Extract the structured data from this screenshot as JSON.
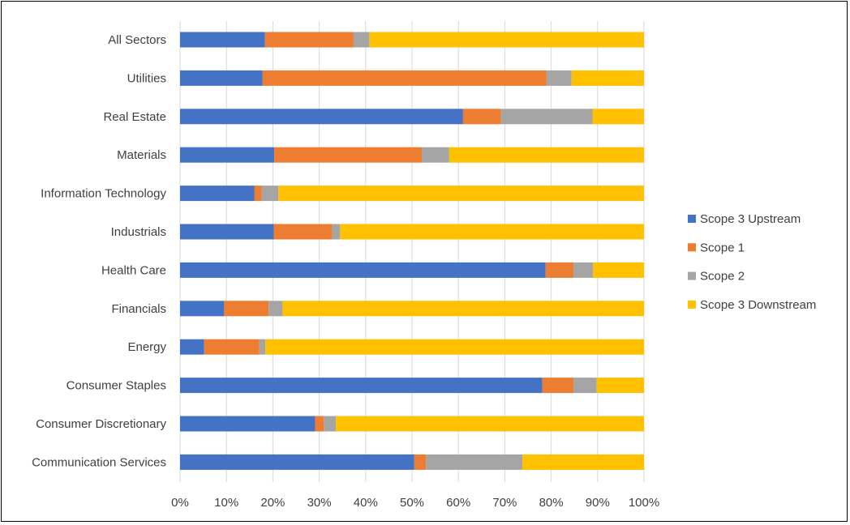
{
  "chart_data": {
    "type": "bar",
    "orientation": "horizontal",
    "stacked": true,
    "categories": [
      "All Sectors",
      "Utilities",
      "Real Estate",
      "Materials",
      "Information Technology",
      "Industrials",
      "Health Care",
      "Financials",
      "Energy",
      "Consumer Staples",
      "Consumer Discretionary",
      "Communication Services"
    ],
    "series": [
      {
        "name": "Scope 3 Upstream",
        "color": "#4472C4",
        "values": [
          18.3,
          17.8,
          61.0,
          20.3,
          16.0,
          20.2,
          78.8,
          9.5,
          5.2,
          78.1,
          29.1,
          50.5
        ]
      },
      {
        "name": "Scope 1",
        "color": "#ED7D31",
        "values": [
          19.1,
          61.2,
          8.2,
          31.8,
          1.6,
          12.6,
          6.0,
          9.6,
          11.9,
          6.7,
          1.9,
          2.5
        ]
      },
      {
        "name": "Scope 2",
        "color": "#A5A5A5",
        "values": [
          3.4,
          5.4,
          19.7,
          5.9,
          3.6,
          1.7,
          4.2,
          3.0,
          1.3,
          5.0,
          2.6,
          20.8
        ]
      },
      {
        "name": "Scope 3 Downstream",
        "color": "#FFC000",
        "values": [
          59.2,
          15.6,
          11.1,
          42.0,
          78.8,
          65.5,
          11.0,
          77.9,
          81.6,
          10.2,
          66.4,
          26.2
        ]
      }
    ],
    "xlim": [
      0,
      100
    ],
    "x_ticks": [
      "0%",
      "10%",
      "20%",
      "30%",
      "40%",
      "50%",
      "60%",
      "70%",
      "80%",
      "90%",
      "100%"
    ],
    "grid": "vertical",
    "legend_position": "right",
    "title": "",
    "xlabel": "",
    "ylabel": ""
  }
}
